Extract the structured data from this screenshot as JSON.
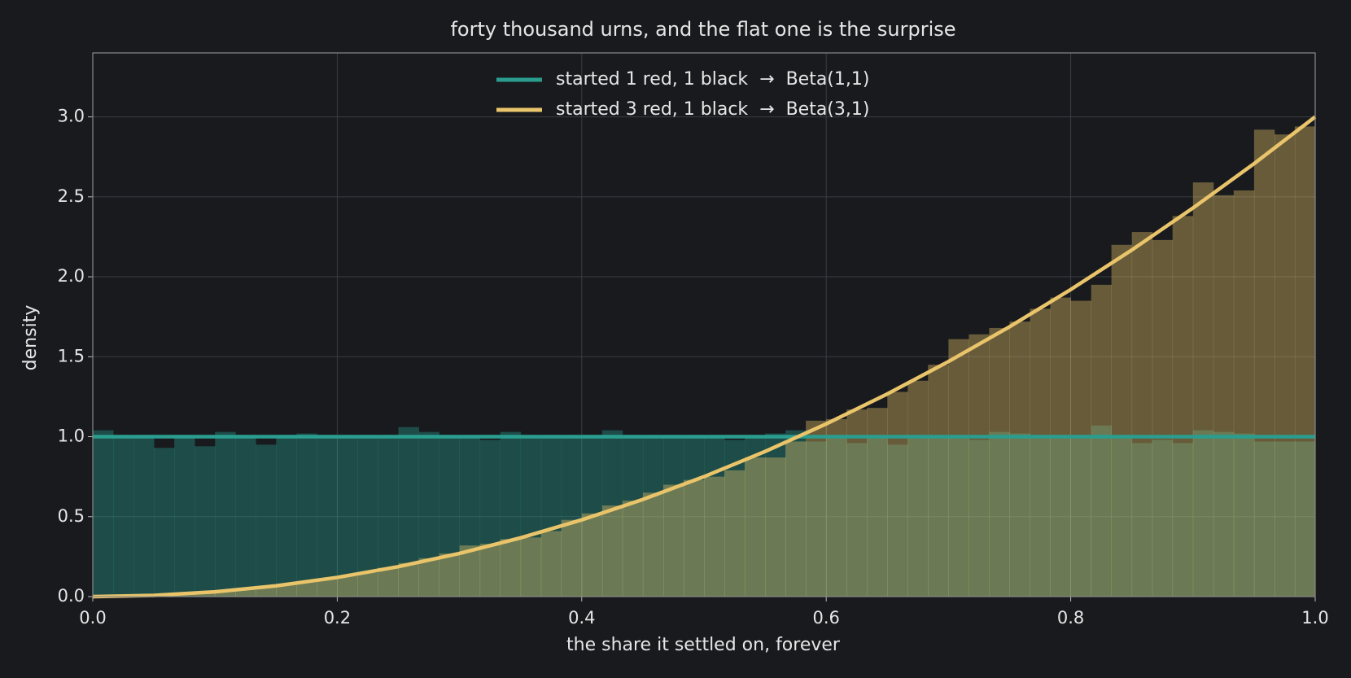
{
  "chart_data": {
    "type": "histogram",
    "title": "forty thousand urns, and the flat one is the surprise",
    "xlabel": "the share it settled on, forever",
    "ylabel": "density",
    "xlim": [
      0,
      1
    ],
    "ylim": [
      0,
      3.4
    ],
    "xticks": [
      {
        "value": 0,
        "label": "0.0"
      },
      0.2,
      0.4,
      0.6,
      0.8,
      {
        "value": 1,
        "label": "1.0"
      }
    ],
    "yticks": [
      {
        "value": 0,
        "label": "0.0"
      },
      0.5,
      {
        "value": 1,
        "label": "1.0"
      },
      1.5,
      {
        "value": 2,
        "label": "2.0"
      },
      2.5,
      {
        "value": 3,
        "label": "3.0"
      }
    ],
    "grid": true,
    "legend": "upper center",
    "bins": [
      0,
      0.0167,
      0.0333,
      0.05,
      0.0667,
      0.0833,
      0.1,
      0.1167,
      0.1333,
      0.15,
      0.1667,
      0.1833,
      0.2,
      0.2167,
      0.2333,
      0.25,
      0.2667,
      0.2833,
      0.3,
      0.3167,
      0.3333,
      0.35,
      0.3667,
      0.3833,
      0.4,
      0.4167,
      0.4333,
      0.45,
      0.4667,
      0.4833,
      0.5,
      0.5167,
      0.5333,
      0.55,
      0.5667,
      0.5833,
      0.6,
      0.6167,
      0.6333,
      0.65,
      0.6667,
      0.6833,
      0.7,
      0.7167,
      0.7333,
      0.75,
      0.7667,
      0.7833,
      0.8,
      0.8167,
      0.8333,
      0.85,
      0.8667,
      0.8833,
      0.9,
      0.9167,
      0.9333,
      0.95,
      0.9667,
      0.9833,
      1
    ],
    "series": [
      {
        "name": "started 1 red, 1 black  →  Beta(1,1)",
        "color": "#2a9d8f",
        "values": [
          1.04,
          0.99,
          1.0,
          0.93,
          1.0,
          0.94,
          1.03,
          1.0,
          0.95,
          1.0,
          1.02,
          1.01,
          1.0,
          1.01,
          1.0,
          1.06,
          1.03,
          1.01,
          0.99,
          0.98,
          1.03,
          1.0,
          1.0,
          1.0,
          1.0,
          1.04,
          0.99,
          1.0,
          1.0,
          0.99,
          1.0,
          0.98,
          1.01,
          1.02,
          1.04,
          0.97,
          1.0,
          0.96,
          1.0,
          0.95,
          1.0,
          1.0,
          1.0,
          0.98,
          1.03,
          1.02,
          1.0,
          1.0,
          1.0,
          1.07,
          0.99,
          0.96,
          0.98,
          0.96,
          1.04,
          1.03,
          1.02,
          0.97,
          0.97,
          0.97
        ],
        "curve_x": [
          0,
          1
        ],
        "curve_y": [
          1,
          1
        ]
      },
      {
        "name": "started 3 red, 1 black  →  Beta(3,1)",
        "color": "#e9c46a",
        "values": [
          0,
          0.002,
          0.006,
          0.01,
          0.017,
          0.025,
          0.035,
          0.045,
          0.06,
          0.08,
          0.09,
          0.11,
          0.13,
          0.15,
          0.18,
          0.21,
          0.24,
          0.27,
          0.32,
          0.33,
          0.36,
          0.37,
          0.41,
          0.48,
          0.52,
          0.57,
          0.6,
          0.65,
          0.7,
          0.73,
          0.75,
          0.79,
          0.87,
          0.87,
          0.97,
          1.1,
          1.11,
          1.17,
          1.18,
          1.28,
          1.35,
          1.45,
          1.61,
          1.64,
          1.68,
          1.72,
          1.8,
          1.87,
          1.85,
          1.95,
          2.2,
          2.28,
          2.23,
          2.38,
          2.59,
          2.51,
          2.54,
          2.92,
          2.89,
          2.94
        ],
        "curve_x": [
          0,
          0.05,
          0.1,
          0.15,
          0.2,
          0.25,
          0.3,
          0.35,
          0.4,
          0.45,
          0.5,
          0.55,
          0.6,
          0.65,
          0.7,
          0.75,
          0.8,
          0.85,
          0.9,
          0.95,
          1
        ],
        "curve_y": [
          0,
          0.0075,
          0.03,
          0.0675,
          0.12,
          0.1875,
          0.27,
          0.3675,
          0.48,
          0.6075,
          0.75,
          0.9075,
          1.08,
          1.2675,
          1.47,
          1.6875,
          1.92,
          2.1675,
          2.43,
          2.7075,
          3.0
        ]
      }
    ]
  }
}
